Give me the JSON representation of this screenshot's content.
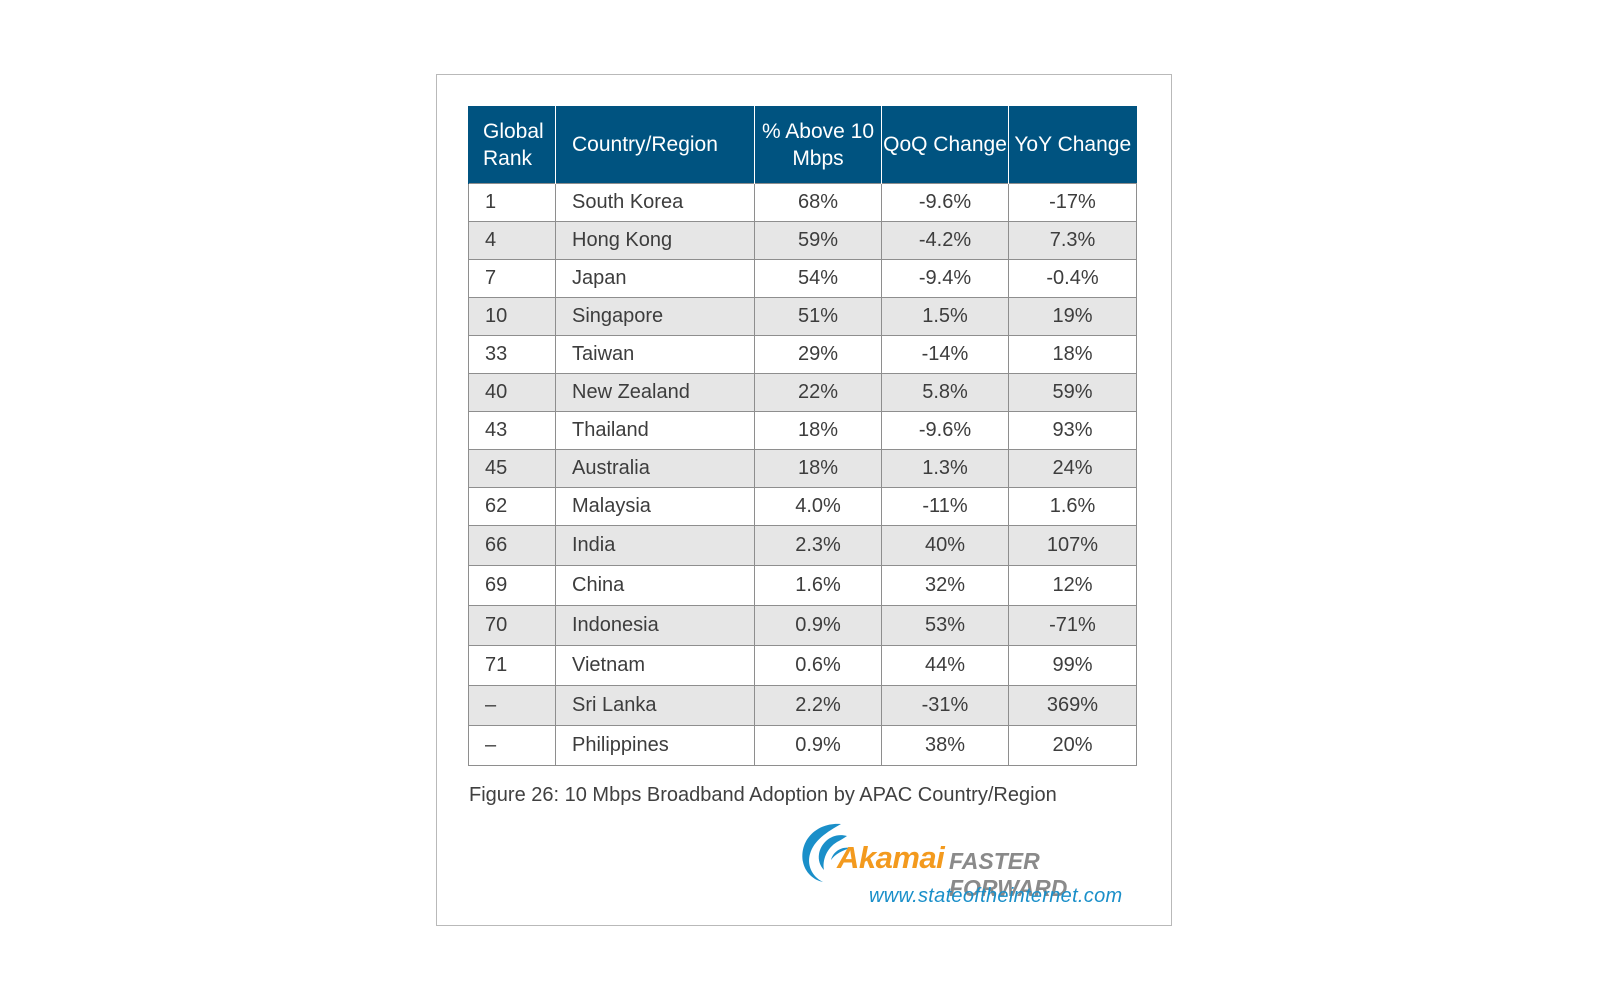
{
  "chart_data": {
    "type": "table",
    "columns": [
      "Global Rank",
      "Country/Region",
      "% Above 10 Mbps",
      "QoQ Change",
      "YoY Change"
    ],
    "rows": [
      [
        "1",
        "South Korea",
        "68%",
        "-9.6%",
        "-17%"
      ],
      [
        "4",
        "Hong Kong",
        "59%",
        "-4.2%",
        "7.3%"
      ],
      [
        "7",
        "Japan",
        "54%",
        "-9.4%",
        "-0.4%"
      ],
      [
        "10",
        "Singapore",
        "51%",
        "1.5%",
        "19%"
      ],
      [
        "33",
        "Taiwan",
        "29%",
        "-14%",
        "18%"
      ],
      [
        "40",
        "New Zealand",
        "22%",
        "5.8%",
        "59%"
      ],
      [
        "43",
        "Thailand",
        "18%",
        "-9.6%",
        "93%"
      ],
      [
        "45",
        "Australia",
        "18%",
        "1.3%",
        "24%"
      ],
      [
        "62",
        "Malaysia",
        "4.0%",
        "-11%",
        "1.6%"
      ],
      [
        "66",
        "India",
        "2.3%",
        "40%",
        "107%"
      ],
      [
        "69",
        "China",
        "1.6%",
        "32%",
        "12%"
      ],
      [
        "70",
        "Indonesia",
        "0.9%",
        "53%",
        "-71%"
      ],
      [
        "71",
        "Vietnam",
        "0.6%",
        "44%",
        "99%"
      ],
      [
        "–",
        "Sri Lanka",
        "2.2%",
        "-31%",
        "369%"
      ],
      [
        "–",
        "Philippines",
        "0.9%",
        "38%",
        "20%"
      ]
    ]
  },
  "caption": "Figure 26: 10 Mbps Broadband Adoption by APAC Country/Region",
  "logo": {
    "brand": "Akamai",
    "tagline": "FASTER FORWARD",
    "url": "www.stateoftheinternet.com"
  },
  "colors": {
    "header_bg": "#005380",
    "alt_row_bg": "#e6e6e6",
    "brand_orange": "#f39a1e",
    "brand_blue": "#1a8fc9"
  }
}
